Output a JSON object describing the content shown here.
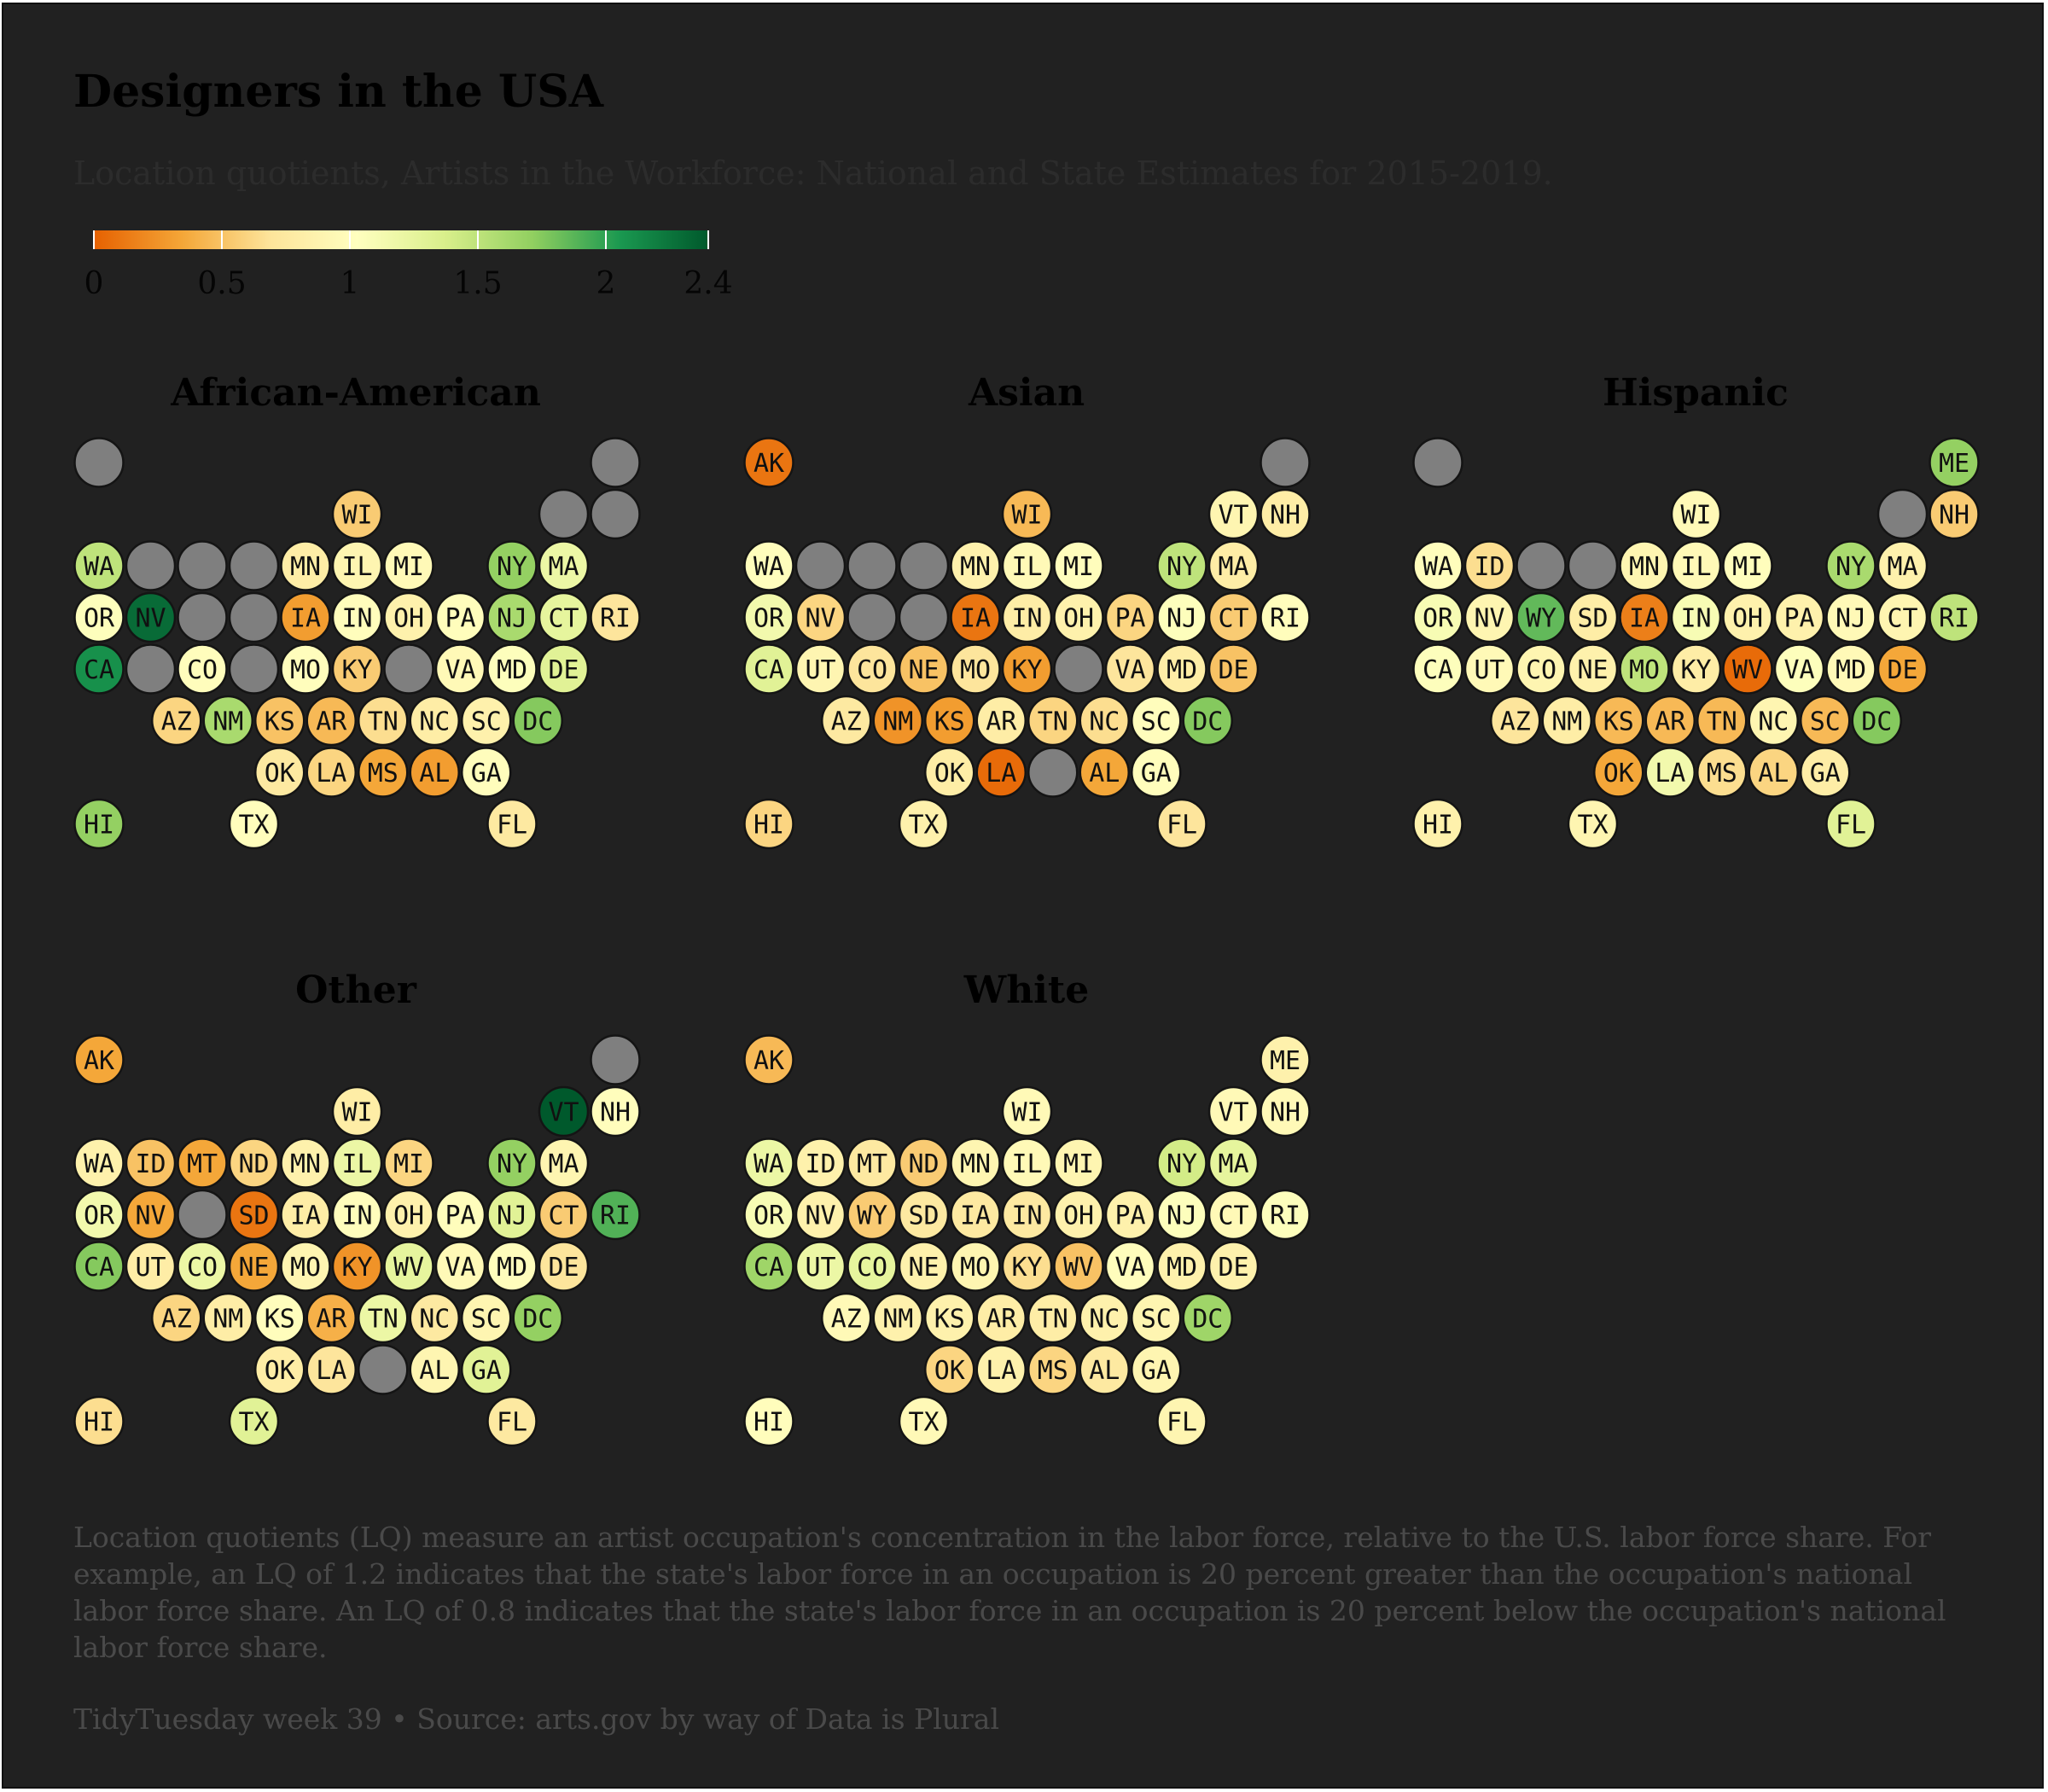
{
  "title": "Designers in the USA",
  "subtitle": "Location quotients, Artists in the Workforce: National and State Estimates for 2015-2019.",
  "caption": "Location quotients (LQ) measure an artist occupation's concentration in the labor force, relative to the U.S. labor force share. For example, an LQ of 1.2 indicates that the state's labor force in an occupation is 20 percent greater than the occupation's national labor force share. An LQ of 0.8 indicates that the state's labor force in an occupation is 20 percent below the occupation's national labor force share.",
  "source": "TidyTuesday week 39 • Source: arts.gov by way of Data is Plural",
  "colors": {
    "background": "#212121",
    "missing": "#7f7f7f",
    "scale_stops": [
      "#e66101",
      "#f4a637",
      "#fde49a",
      "#ffffbf",
      "#d9ef8b",
      "#91cf60",
      "#1a9850",
      "#00592c"
    ]
  },
  "chart_data": {
    "type": "tile-map",
    "metric": "Location quotient",
    "scale": {
      "min": 0,
      "max": 2.4,
      "midpoint": 1,
      "ticks": [
        0,
        0.5,
        1,
        1.5,
        2,
        2.4
      ],
      "tick_labels": [
        "0",
        "0.5",
        "1",
        "1.5",
        "2",
        "2.4"
      ]
    },
    "grid": {
      "AK": [
        0,
        0
      ],
      "ME": [
        10,
        0
      ],
      "WI": [
        5,
        1
      ],
      "VT": [
        9,
        1
      ],
      "NH": [
        10,
        1
      ],
      "WA": [
        0,
        2
      ],
      "ID": [
        1,
        2
      ],
      "MT": [
        2,
        2
      ],
      "ND": [
        3,
        2
      ],
      "MN": [
        4,
        2
      ],
      "IL": [
        5,
        2
      ],
      "MI": [
        6,
        2
      ],
      "NY": [
        8,
        2
      ],
      "MA": [
        9,
        2
      ],
      "OR": [
        0,
        3
      ],
      "NV": [
        1,
        3
      ],
      "WY": [
        2,
        3
      ],
      "SD": [
        3,
        3
      ],
      "IA": [
        4,
        3
      ],
      "IN": [
        5,
        3
      ],
      "OH": [
        6,
        3
      ],
      "PA": [
        7,
        3
      ],
      "NJ": [
        8,
        3
      ],
      "CT": [
        9,
        3
      ],
      "RI": [
        10,
        3
      ],
      "CA": [
        0,
        4
      ],
      "UT": [
        1,
        4
      ],
      "CO": [
        2,
        4
      ],
      "NE": [
        3,
        4
      ],
      "MO": [
        4,
        4
      ],
      "KY": [
        5,
        4
      ],
      "WV": [
        6,
        4
      ],
      "VA": [
        7,
        4
      ],
      "MD": [
        8,
        4
      ],
      "DE": [
        9,
        4
      ],
      "AZ": [
        1.5,
        5
      ],
      "NM": [
        2.5,
        5
      ],
      "KS": [
        3.5,
        5
      ],
      "AR": [
        4.5,
        5
      ],
      "TN": [
        5.5,
        5
      ],
      "NC": [
        6.5,
        5
      ],
      "SC": [
        7.5,
        5
      ],
      "DC": [
        8.5,
        5
      ],
      "OK": [
        3.5,
        6
      ],
      "LA": [
        4.5,
        6
      ],
      "MS": [
        5.5,
        6
      ],
      "AL": [
        6.5,
        6
      ],
      "GA": [
        7.5,
        6
      ],
      "HI": [
        0,
        7
      ],
      "TX": [
        3,
        7
      ],
      "FL": [
        8,
        7
      ]
    },
    "panels": [
      {
        "name": "African-American",
        "values": {
          "AK": null,
          "ME": null,
          "WI": 0.55,
          "VT": null,
          "NH": null,
          "WA": 1.5,
          "ID": null,
          "MT": null,
          "ND": null,
          "MN": 0.8,
          "IL": 0.9,
          "MI": 0.95,
          "NY": 1.7,
          "MA": 1.2,
          "OR": 1.05,
          "NV": 2.3,
          "WY": null,
          "SD": null,
          "IA": 0.3,
          "IN": 1.0,
          "OH": 0.85,
          "PA": 1.0,
          "NJ": 1.6,
          "CT": 1.25,
          "RI": 0.7,
          "CA": 2.1,
          "UT": null,
          "CO": 1.0,
          "NE": null,
          "MO": 1.0,
          "KY": 0.55,
          "WV": null,
          "VA": 0.95,
          "MD": 1.05,
          "DE": 1.3,
          "AZ": 0.6,
          "NM": 1.6,
          "KS": 0.5,
          "AR": 0.45,
          "TN": 0.65,
          "NC": 0.8,
          "SC": 0.85,
          "DC": 1.75,
          "OK": 0.75,
          "LA": 0.6,
          "MS": 0.35,
          "AL": 0.3,
          "GA": 1.0,
          "HI": 1.7,
          "TX": 1.0,
          "FL": 0.75
        }
      },
      {
        "name": "Asian",
        "values": {
          "AK": 0.1,
          "ME": null,
          "WI": 0.45,
          "VT": 0.9,
          "NH": 0.8,
          "WA": 1.0,
          "ID": null,
          "MT": null,
          "ND": null,
          "MN": 0.85,
          "IL": 0.95,
          "MI": 1.0,
          "NY": 1.5,
          "MA": 0.8,
          "OR": 1.15,
          "NV": 0.6,
          "WY": null,
          "SD": null,
          "IA": 0.1,
          "IN": 0.8,
          "OH": 0.85,
          "PA": 0.6,
          "NJ": 1.05,
          "CT": 0.55,
          "RI": 1.0,
          "CA": 1.3,
          "UT": 0.9,
          "CO": 0.7,
          "NE": 0.5,
          "MO": 0.7,
          "KY": 0.3,
          "WV": null,
          "VA": 0.7,
          "MD": 0.8,
          "DE": 0.5,
          "AZ": 0.75,
          "NM": 0.25,
          "KS": 0.3,
          "AR": 0.8,
          "TN": 0.6,
          "NC": 0.65,
          "SC": 1.0,
          "DC": 1.75,
          "OK": 0.8,
          "LA": 0.05,
          "MS": null,
          "AL": 0.35,
          "GA": 1.0,
          "HI": 0.6,
          "TX": 0.85,
          "FL": 0.7
        }
      },
      {
        "name": "Hispanic",
        "values": {
          "AK": null,
          "ME": 1.7,
          "WI": 0.95,
          "VT": null,
          "NH": 0.55,
          "WA": 1.0,
          "ID": 0.65,
          "MT": null,
          "ND": null,
          "MN": 0.9,
          "IL": 0.95,
          "MI": 1.0,
          "NY": 1.6,
          "MA": 0.85,
          "OR": 1.1,
          "NV": 0.9,
          "WY": 1.85,
          "SD": 0.8,
          "IA": 0.15,
          "IN": 1.1,
          "OH": 0.85,
          "PA": 0.85,
          "NJ": 0.95,
          "CT": 0.9,
          "RI": 1.5,
          "CA": 1.05,
          "UT": 0.95,
          "CO": 0.9,
          "NE": 0.85,
          "MO": 1.5,
          "KY": 0.8,
          "WV": 0.05,
          "VA": 1.05,
          "MD": 0.95,
          "DE": 0.35,
          "AZ": 0.7,
          "NM": 0.8,
          "KS": 0.45,
          "AR": 0.45,
          "TN": 0.45,
          "NC": 0.9,
          "SC": 0.45,
          "DC": 1.75,
          "OK": 0.35,
          "LA": 1.15,
          "MS": 0.65,
          "AL": 0.6,
          "GA": 0.8,
          "HI": 0.85,
          "TX": 0.9,
          "FL": 1.3
        }
      },
      {
        "name": "Other",
        "values": {
          "AK": 0.35,
          "ME": null,
          "WI": 0.8,
          "VT": 2.4,
          "NH": 1.0,
          "WA": 0.85,
          "ID": 0.5,
          "MT": 0.35,
          "ND": 0.6,
          "MN": 0.85,
          "IL": 1.2,
          "MI": 0.6,
          "NY": 1.7,
          "MA": 0.9,
          "OR": 1.15,
          "NV": 0.35,
          "WY": null,
          "SD": 0.1,
          "IA": 0.8,
          "IN": 1.0,
          "OH": 0.85,
          "PA": 1.0,
          "NJ": 1.3,
          "CT": 0.55,
          "RI": 1.9,
          "CA": 1.75,
          "UT": 0.8,
          "CO": 1.2,
          "NE": 0.35,
          "MO": 0.9,
          "KY": 0.25,
          "WV": 1.25,
          "VA": 0.95,
          "MD": 1.0,
          "DE": 0.7,
          "AZ": 0.6,
          "NM": 0.8,
          "KS": 1.0,
          "AR": 0.4,
          "TN": 1.2,
          "NC": 0.75,
          "SC": 0.9,
          "DC": 1.7,
          "OK": 0.8,
          "LA": 0.7,
          "MS": null,
          "AL": 0.9,
          "GA": 1.3,
          "HI": 0.65,
          "TX": 1.3,
          "FL": 0.75
        }
      },
      {
        "name": "White",
        "values": {
          "AK": 0.45,
          "ME": 0.85,
          "WI": 0.95,
          "VT": 0.95,
          "NH": 0.95,
          "WA": 1.2,
          "ID": 0.85,
          "MT": 0.75,
          "ND": 0.55,
          "MN": 0.9,
          "IL": 0.95,
          "MI": 0.9,
          "NY": 1.4,
          "MA": 1.25,
          "OR": 1.1,
          "NV": 0.85,
          "WY": 0.55,
          "SD": 0.75,
          "IA": 0.75,
          "IN": 0.75,
          "OH": 0.85,
          "PA": 0.85,
          "NJ": 1.05,
          "CT": 0.95,
          "RI": 1.05,
          "CA": 1.65,
          "UT": 1.2,
          "CO": 1.25,
          "NE": 0.85,
          "MO": 0.9,
          "KY": 0.65,
          "WV": 0.5,
          "VA": 1.0,
          "MD": 0.85,
          "DE": 0.85,
          "AZ": 0.95,
          "NM": 0.85,
          "KS": 0.85,
          "AR": 0.8,
          "TN": 0.8,
          "NC": 0.85,
          "SC": 0.9,
          "DC": 1.65,
          "OK": 0.6,
          "LA": 0.85,
          "MS": 0.6,
          "AL": 0.75,
          "GA": 0.9,
          "HI": 1.0,
          "TX": 0.95,
          "FL": 0.9
        }
      }
    ]
  }
}
